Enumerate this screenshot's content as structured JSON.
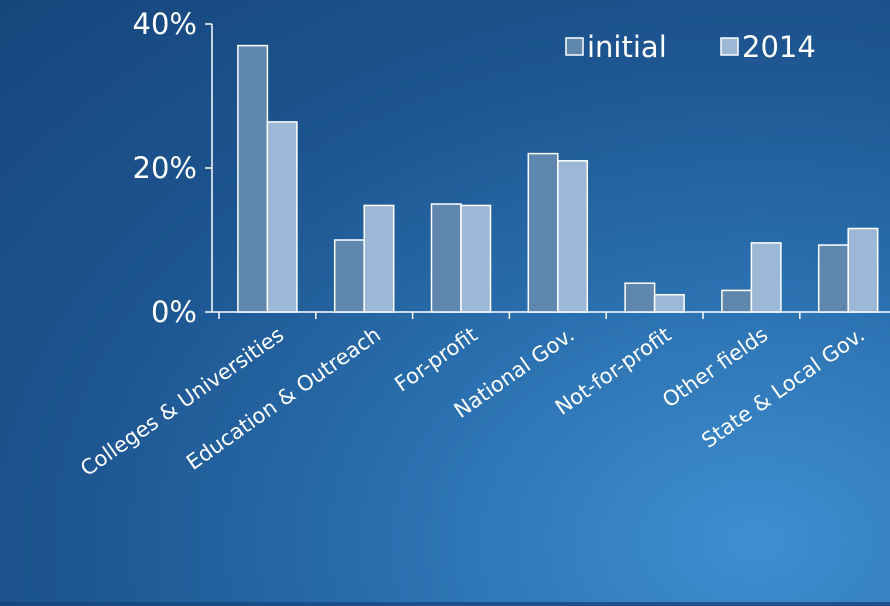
{
  "chart_data": {
    "type": "bar",
    "categories": [
      "Colleges & Universities",
      "Education & Outreach",
      "For-profit",
      "National Gov.",
      "Not-for-profit",
      "Other fields",
      "State & Local Gov."
    ],
    "series": [
      {
        "name": "initial",
        "values": [
          37,
          10,
          15,
          22,
          4,
          3,
          9.3
        ]
      },
      {
        "name": "2014",
        "values": [
          26.4,
          14.8,
          14.8,
          21,
          2.4,
          9.6,
          11.6
        ]
      }
    ],
    "yticks": [
      "0%",
      "20%",
      "40%"
    ],
    "ylim": [
      0,
      40
    ],
    "legend_position": "top-right",
    "grid": false,
    "colors": {
      "initial": "#5f86ad",
      "2014": "#9db8d6",
      "bar_stroke": "#ffffff",
      "axis": "#ffffff",
      "text": "#ffffff"
    }
  }
}
